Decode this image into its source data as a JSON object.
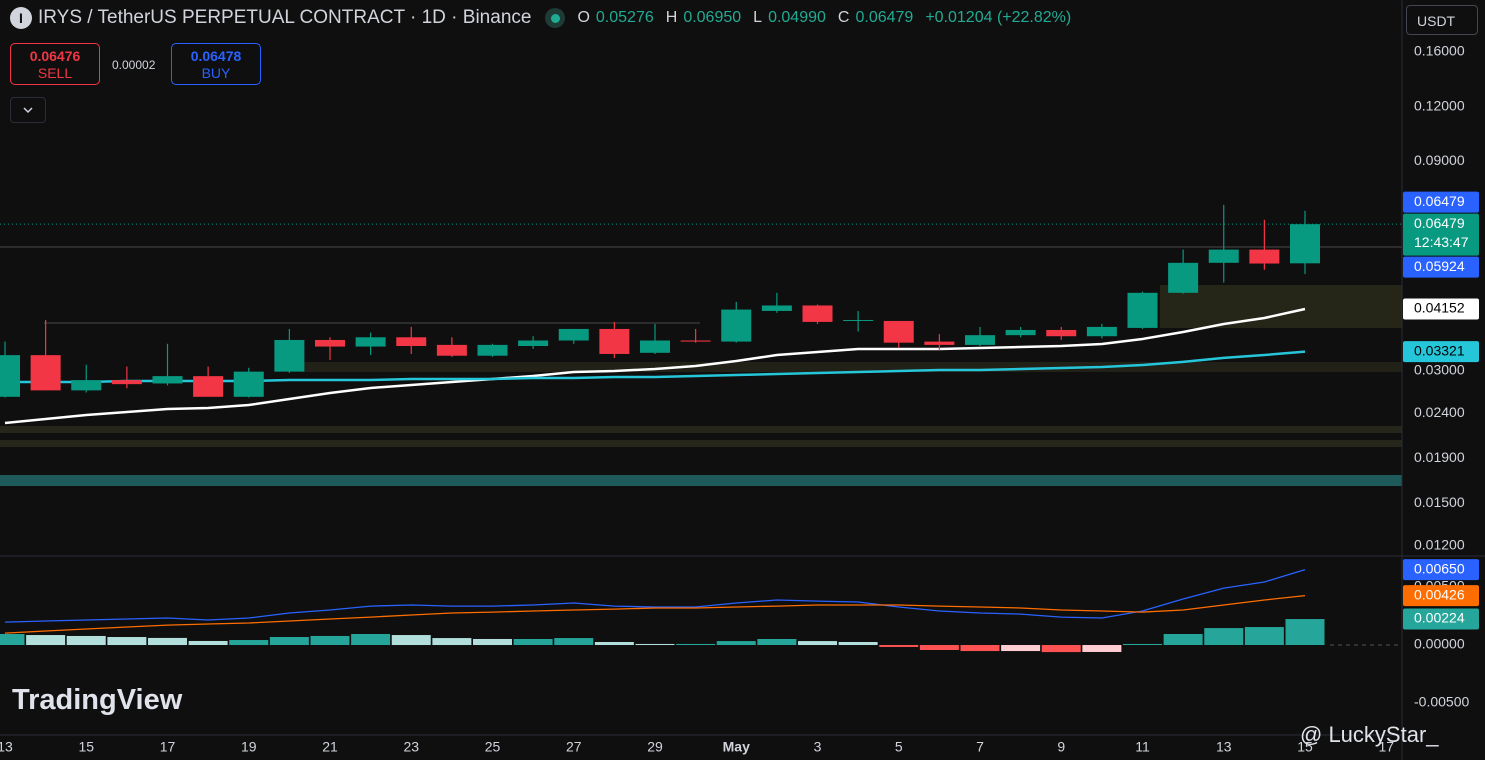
{
  "header": {
    "symbol": "IRYS / TetherUS PERPETUAL CONTRACT · 1D · Binance",
    "ohlc": [
      {
        "key": "O",
        "value": "0.05276"
      },
      {
        "key": "H",
        "value": "0.06950"
      },
      {
        "key": "L",
        "value": "0.04990"
      },
      {
        "key": "C",
        "value": "0.06479"
      }
    ],
    "change": "+0.01204 (+22.82%)"
  },
  "trade": {
    "sell_price": "0.06476",
    "sell": "SELL",
    "spread": "0.00002",
    "buy_price": "0.06478",
    "buy": "BUY"
  },
  "currency": "USDT",
  "watermark": "TradingView",
  "credit": "@ LuckyStar_",
  "chart_data": [
    {
      "type": "candlestick",
      "categories": [
        "13",
        null,
        "15",
        null,
        "17",
        null,
        "19",
        null,
        "21",
        null,
        "23",
        null,
        "25",
        null,
        "27",
        null,
        "29",
        null,
        "May",
        null,
        "3",
        null,
        "5",
        null,
        "7",
        null,
        "9",
        null,
        "11",
        null,
        "13",
        null,
        "15",
        null,
        "17"
      ],
      "open": [
        0.0262,
        0.0326,
        0.0271,
        0.0286,
        0.0281,
        0.0292,
        0.0262,
        0.0299,
        0.0353,
        0.0341,
        0.0358,
        0.0344,
        0.0325,
        0.0342,
        0.0352,
        0.0374,
        0.033,
        0.0352,
        0.035,
        0.0411,
        0.0423,
        0.039,
        0.039,
        0.035,
        0.0344,
        0.0362,
        0.0372,
        0.036,
        0.0376,
        0.0452,
        0.0529,
        0.0567,
        0.05276,
        null,
        null
      ],
      "high": [
        0.035,
        0.0392,
        0.031,
        0.0307,
        0.0346,
        0.0307,
        0.0305,
        0.0374,
        0.0358,
        0.0367,
        0.0378,
        0.0358,
        0.0346,
        0.036,
        0.0374,
        0.0388,
        0.0384,
        0.0374,
        0.0431,
        0.0452,
        0.0425,
        0.0411,
        0.039,
        0.0364,
        0.0378,
        0.0378,
        0.0378,
        0.0384,
        0.0455,
        0.0567,
        0.0717,
        0.0663,
        0.0695,
        null,
        null
      ],
      "low": [
        0.0261,
        0.0271,
        0.0268,
        0.0274,
        0.0278,
        0.0262,
        0.0261,
        0.0297,
        0.0318,
        0.0326,
        0.0328,
        0.0323,
        0.0323,
        0.0337,
        0.0346,
        0.0321,
        0.0328,
        0.0348,
        0.0348,
        0.0407,
        0.0384,
        0.0369,
        0.0339,
        0.0335,
        0.0342,
        0.0358,
        0.0353,
        0.0356,
        0.0374,
        0.045,
        0.0477,
        0.051,
        0.0499,
        null,
        null
      ],
      "close": [
        0.0326,
        0.0271,
        0.0286,
        0.028,
        0.0292,
        0.0262,
        0.0299,
        0.0353,
        0.0341,
        0.0358,
        0.0342,
        0.0325,
        0.0344,
        0.0352,
        0.0374,
        0.0328,
        0.0352,
        0.035,
        0.0414,
        0.0423,
        0.0388,
        0.0392,
        0.0348,
        0.0344,
        0.0362,
        0.0372,
        0.036,
        0.0378,
        0.0452,
        0.0529,
        0.0567,
        0.0527,
        0.06479,
        null,
        null
      ],
      "up_color": "#089981",
      "down_color": "#f23645",
      "series": [
        {
          "color": "#ffffff",
          "values": [
            0.02284,
            0.02332,
            0.02382,
            0.0242,
            0.02458,
            0.02471,
            0.0251,
            0.0259,
            0.02673,
            0.02744,
            0.02788,
            0.02832,
            0.02877,
            0.02922,
            0.02984,
            0.03,
            0.03032,
            0.0308,
            0.03161,
            0.03263,
            0.03314,
            0.03367,
            0.03367,
            0.03367,
            0.03385,
            0.03402,
            0.0342,
            0.03456,
            0.03548,
            0.03681,
            0.03839,
            0.03961,
            0.04152,
            null,
            null
          ]
        },
        {
          "color": "#26c6da",
          "values": [
            0.02832,
            0.02832,
            0.02832,
            0.02847,
            0.02847,
            0.02847,
            0.02847,
            0.02862,
            0.02862,
            0.02862,
            0.02877,
            0.02877,
            0.02877,
            0.02892,
            0.02892,
            0.02907,
            0.02907,
            0.02922,
            0.02938,
            0.02953,
            0.02969,
            0.02984,
            0.03,
            0.03016,
            0.03016,
            0.03032,
            0.03048,
            0.03064,
            0.03096,
            0.03146,
            0.03213,
            0.03263,
            0.03321,
            null,
            null
          ]
        }
      ],
      "log_scale": true,
      "ylim": [
        0.01143,
        0.2099
      ],
      "yticks": [
        {
          "value": 0.16,
          "label": "0.16000"
        },
        {
          "value": 0.12,
          "label": "0.12000"
        },
        {
          "value": 0.09,
          "label": "0.09000"
        },
        {
          "value": 0.03,
          "label": "0.03000"
        },
        {
          "value": 0.024,
          "label": "0.02400"
        },
        {
          "value": 0.019,
          "label": "0.01900"
        },
        {
          "value": 0.015,
          "label": "0.01500"
        },
        {
          "value": 0.012,
          "label": "0.01200"
        }
      ],
      "price_labels": [
        {
          "value": 0.06479,
          "color": "#2962ff"
        },
        {
          "value": 0.05924,
          "color": "#2962ff"
        }
      ],
      "countdown": "12:43:47"
    },
    {
      "type": "macd",
      "series": [
        {
          "color": "#2962ff",
          "values": [
            0.00198,
            0.00207,
            0.00216,
            0.00224,
            0.00233,
            0.00216,
            0.00233,
            0.00276,
            0.00302,
            0.00336,
            0.00345,
            0.00336,
            0.00336,
            0.00345,
            0.00362,
            0.00336,
            0.00328,
            0.00328,
            0.00362,
            0.00388,
            0.00379,
            0.00371,
            0.00328,
            0.00293,
            0.00276,
            0.00267,
            0.00241,
            0.00233,
            0.00293,
            0.00397,
            0.00491,
            0.00543,
            0.0065,
            null,
            null
          ],
          "value_labels": [
            null,
            null,
            null,
            null,
            null,
            null,
            null,
            null,
            null,
            null,
            null,
            null,
            null,
            null,
            null,
            null,
            null,
            null,
            null,
            null,
            null,
            null,
            null,
            null,
            null,
            null,
            null,
            null,
            null,
            null,
            null,
            null,
            "0.00650",
            null,
            null
          ]
        },
        {
          "color": "#ff6d00",
          "values": [
            0.00103,
            0.00121,
            0.00138,
            0.00155,
            0.00172,
            0.00181,
            0.0019,
            0.00207,
            0.00224,
            0.00241,
            0.00259,
            0.00276,
            0.00284,
            0.00293,
            0.00302,
            0.0031,
            0.00319,
            0.00319,
            0.00328,
            0.00336,
            0.00345,
            0.00345,
            0.00345,
            0.00336,
            0.00328,
            0.00319,
            0.00302,
            0.00293,
            0.00284,
            0.00302,
            0.00345,
            0.00388,
            0.00426,
            null,
            null
          ]
        },
        {
          "kind": "histogram",
          "color": "#26a69a",
          "colors": [
            "#26a69a",
            "#b2dfdb",
            "#ff5252",
            "#ffcdd2"
          ],
          "values": [
            0.00095,
            0.00086,
            0.00078,
            0.00069,
            0.00061,
            0.00035,
            0.00043,
            0.00069,
            0.00078,
            0.00095,
            0.00086,
            0.0006,
            0.00052,
            0.00052,
            0.0006,
            0.00026,
            9e-05,
            9e-05,
            0.00034,
            0.00052,
            0.00034,
            0.00026,
            -0.00017,
            -0.00043,
            -0.00052,
            -0.00052,
            -0.00061,
            -0.0006,
            9e-05,
            0.00095,
            0.00146,
            0.00155,
            0.00224,
            null,
            null
          ]
        }
      ],
      "ylim": [
        -0.00776,
        0.00759
      ],
      "yticks": [
        {
          "value": 0.005,
          "label": "0.00500"
        },
        {
          "value": 0,
          "label": "0.00000"
        },
        {
          "value": -0.005,
          "label": "-0.00500"
        }
      ]
    }
  ]
}
